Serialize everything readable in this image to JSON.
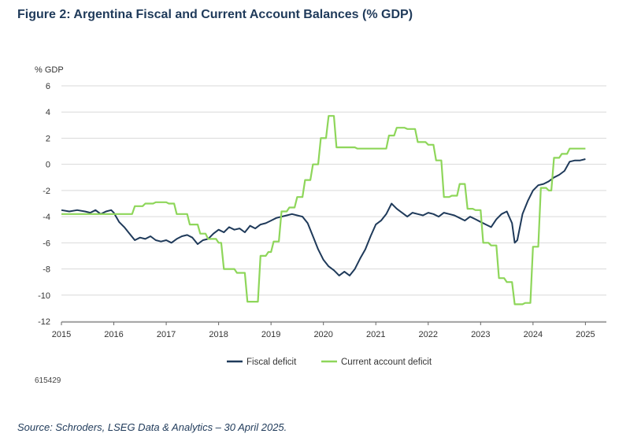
{
  "title": "Figure 2: Argentina Fiscal and Current Account Balances (% GDP)",
  "note": "615429",
  "source": "Source: Schroders, LSEG Data & Analytics – 30 April 2025.",
  "colors": {
    "fiscal": "#1f3a5a",
    "current": "#8ed65a",
    "grid": "#d9d9d9",
    "axis": "#666666"
  },
  "chart_data": {
    "type": "line",
    "title": "Figure 2: Argentina Fiscal and Current Account Balances (% GDP)",
    "xlabel": "",
    "ylabel": "% GDP",
    "xlim": [
      2015,
      2025.4
    ],
    "ylim": [
      -12,
      6
    ],
    "yticks": [
      6,
      4,
      2,
      0,
      -2,
      -4,
      -6,
      -8,
      -10,
      -12
    ],
    "xticks": [
      "2015",
      "2016",
      "2017",
      "2018",
      "2019",
      "2020",
      "2021",
      "2022",
      "2023",
      "2024",
      "2025"
    ],
    "grid": true,
    "legend_position": "bottom-center",
    "series": [
      {
        "name": "Fiscal deficit",
        "color": "#1f3a5a",
        "x": [
          2015.0,
          2015.15,
          2015.3,
          2015.45,
          2015.55,
          2015.65,
          2015.75,
          2015.85,
          2015.95,
          2016.0,
          2016.1,
          2016.2,
          2016.3,
          2016.4,
          2016.5,
          2016.6,
          2016.7,
          2016.8,
          2016.9,
          2017.0,
          2017.1,
          2017.2,
          2017.3,
          2017.4,
          2017.5,
          2017.6,
          2017.7,
          2017.8,
          2017.9,
          2018.0,
          2018.1,
          2018.2,
          2018.3,
          2018.4,
          2018.5,
          2018.6,
          2018.7,
          2018.8,
          2018.9,
          2019.0,
          2019.1,
          2019.2,
          2019.3,
          2019.4,
          2019.5,
          2019.6,
          2019.7,
          2019.8,
          2019.9,
          2020.0,
          2020.1,
          2020.2,
          2020.3,
          2020.4,
          2020.5,
          2020.6,
          2020.7,
          2020.8,
          2020.9,
          2021.0,
          2021.1,
          2021.2,
          2021.3,
          2021.35,
          2021.4,
          2021.5,
          2021.6,
          2021.7,
          2021.8,
          2021.9,
          2022.0,
          2022.1,
          2022.2,
          2022.3,
          2022.4,
          2022.5,
          2022.6,
          2022.7,
          2022.8,
          2022.9,
          2023.0,
          2023.1,
          2023.2,
          2023.3,
          2023.4,
          2023.5,
          2023.6,
          2023.65,
          2023.7,
          2023.8,
          2023.9,
          2024.0,
          2024.1,
          2024.2,
          2024.3,
          2024.4,
          2024.5,
          2024.6,
          2024.7,
          2024.8,
          2024.9,
          2025.0
        ],
        "values": [
          -3.5,
          -3.6,
          -3.5,
          -3.6,
          -3.7,
          -3.5,
          -3.8,
          -3.6,
          -3.5,
          -3.7,
          -4.4,
          -4.8,
          -5.3,
          -5.8,
          -5.6,
          -5.7,
          -5.5,
          -5.8,
          -5.9,
          -5.8,
          -6.0,
          -5.7,
          -5.5,
          -5.4,
          -5.6,
          -6.1,
          -5.8,
          -5.7,
          -5.3,
          -5.0,
          -5.2,
          -4.8,
          -5.0,
          -4.9,
          -5.2,
          -4.7,
          -4.9,
          -4.6,
          -4.5,
          -4.3,
          -4.1,
          -4.0,
          -3.9,
          -3.8,
          -3.9,
          -4.0,
          -4.5,
          -5.5,
          -6.5,
          -7.3,
          -7.8,
          -8.1,
          -8.5,
          -8.2,
          -8.5,
          -8.0,
          -7.2,
          -6.5,
          -5.5,
          -4.6,
          -4.3,
          -3.8,
          -3.0,
          -3.2,
          -3.4,
          -3.7,
          -4.0,
          -3.7,
          -3.8,
          -3.9,
          -3.7,
          -3.8,
          -4.0,
          -3.7,
          -3.8,
          -3.9,
          -4.1,
          -4.3,
          -4.0,
          -4.2,
          -4.4,
          -4.6,
          -4.8,
          -4.2,
          -3.8,
          -3.6,
          -4.5,
          -6.0,
          -5.8,
          -3.8,
          -2.8,
          -2.0,
          -1.6,
          -1.5,
          -1.3,
          -1.0,
          -0.8,
          -0.5,
          0.2,
          0.3,
          0.3,
          0.4
        ]
      },
      {
        "name": "Current account deficit",
        "color": "#8ed65a",
        "x": [
          2015.0,
          2015.3,
          2015.6,
          2015.9,
          2016.2,
          2016.35,
          2016.4,
          2016.55,
          2016.6,
          2016.75,
          2016.8,
          2017.0,
          2017.05,
          2017.15,
          2017.2,
          2017.4,
          2017.45,
          2017.6,
          2017.65,
          2017.75,
          2017.8,
          2017.95,
          2018.0,
          2018.05,
          2018.1,
          2018.3,
          2018.35,
          2018.5,
          2018.55,
          2018.6,
          2018.7,
          2018.75,
          2018.8,
          2018.9,
          2018.95,
          2019.0,
          2019.05,
          2019.15,
          2019.2,
          2019.3,
          2019.35,
          2019.45,
          2019.5,
          2019.6,
          2019.65,
          2019.75,
          2019.8,
          2019.9,
          2019.95,
          2020.05,
          2020.1,
          2020.2,
          2020.25,
          2020.45,
          2020.5,
          2020.6,
          2020.65,
          2020.8,
          2021.0,
          2021.2,
          2021.25,
          2021.35,
          2021.4,
          2021.55,
          2021.6,
          2021.75,
          2021.8,
          2021.95,
          2022.0,
          2022.1,
          2022.15,
          2022.25,
          2022.3,
          2022.4,
          2022.45,
          2022.55,
          2022.6,
          2022.7,
          2022.75,
          2022.85,
          2022.9,
          2023.0,
          2023.05,
          2023.15,
          2023.2,
          2023.3,
          2023.35,
          2023.45,
          2023.5,
          2023.6,
          2023.65,
          2023.8,
          2023.85,
          2023.95,
          2024.0,
          2024.1,
          2024.15,
          2024.25,
          2024.3,
          2024.35,
          2024.4,
          2024.5,
          2024.55,
          2024.65,
          2024.7,
          2024.9,
          2025.0
        ],
        "values": [
          -3.8,
          -3.8,
          -3.8,
          -3.8,
          -3.8,
          -3.8,
          -3.2,
          -3.2,
          -3.0,
          -3.0,
          -2.9,
          -2.9,
          -3.0,
          -3.0,
          -3.8,
          -3.8,
          -4.6,
          -4.6,
          -5.3,
          -5.3,
          -5.7,
          -5.7,
          -6.0,
          -6.0,
          -8.0,
          -8.0,
          -8.3,
          -8.3,
          -10.5,
          -10.5,
          -10.5,
          -10.5,
          -7.0,
          -7.0,
          -6.7,
          -6.7,
          -5.9,
          -5.9,
          -3.6,
          -3.6,
          -3.3,
          -3.3,
          -2.5,
          -2.5,
          -1.2,
          -1.2,
          0.0,
          0.0,
          2.0,
          2.0,
          3.7,
          3.7,
          1.3,
          1.3,
          1.3,
          1.3,
          1.2,
          1.2,
          1.2,
          1.2,
          2.2,
          2.2,
          2.8,
          2.8,
          2.7,
          2.7,
          1.7,
          1.7,
          1.5,
          1.5,
          0.3,
          0.3,
          -2.5,
          -2.5,
          -2.4,
          -2.4,
          -1.5,
          -1.5,
          -3.4,
          -3.4,
          -3.5,
          -3.5,
          -6.0,
          -6.0,
          -6.2,
          -6.2,
          -8.7,
          -8.7,
          -9.0,
          -9.0,
          -10.7,
          -10.7,
          -10.6,
          -10.6,
          -6.3,
          -6.3,
          -1.8,
          -1.8,
          -2.0,
          -2.0,
          0.5,
          0.5,
          0.8,
          0.8,
          1.2,
          1.2,
          1.2
        ]
      }
    ]
  }
}
